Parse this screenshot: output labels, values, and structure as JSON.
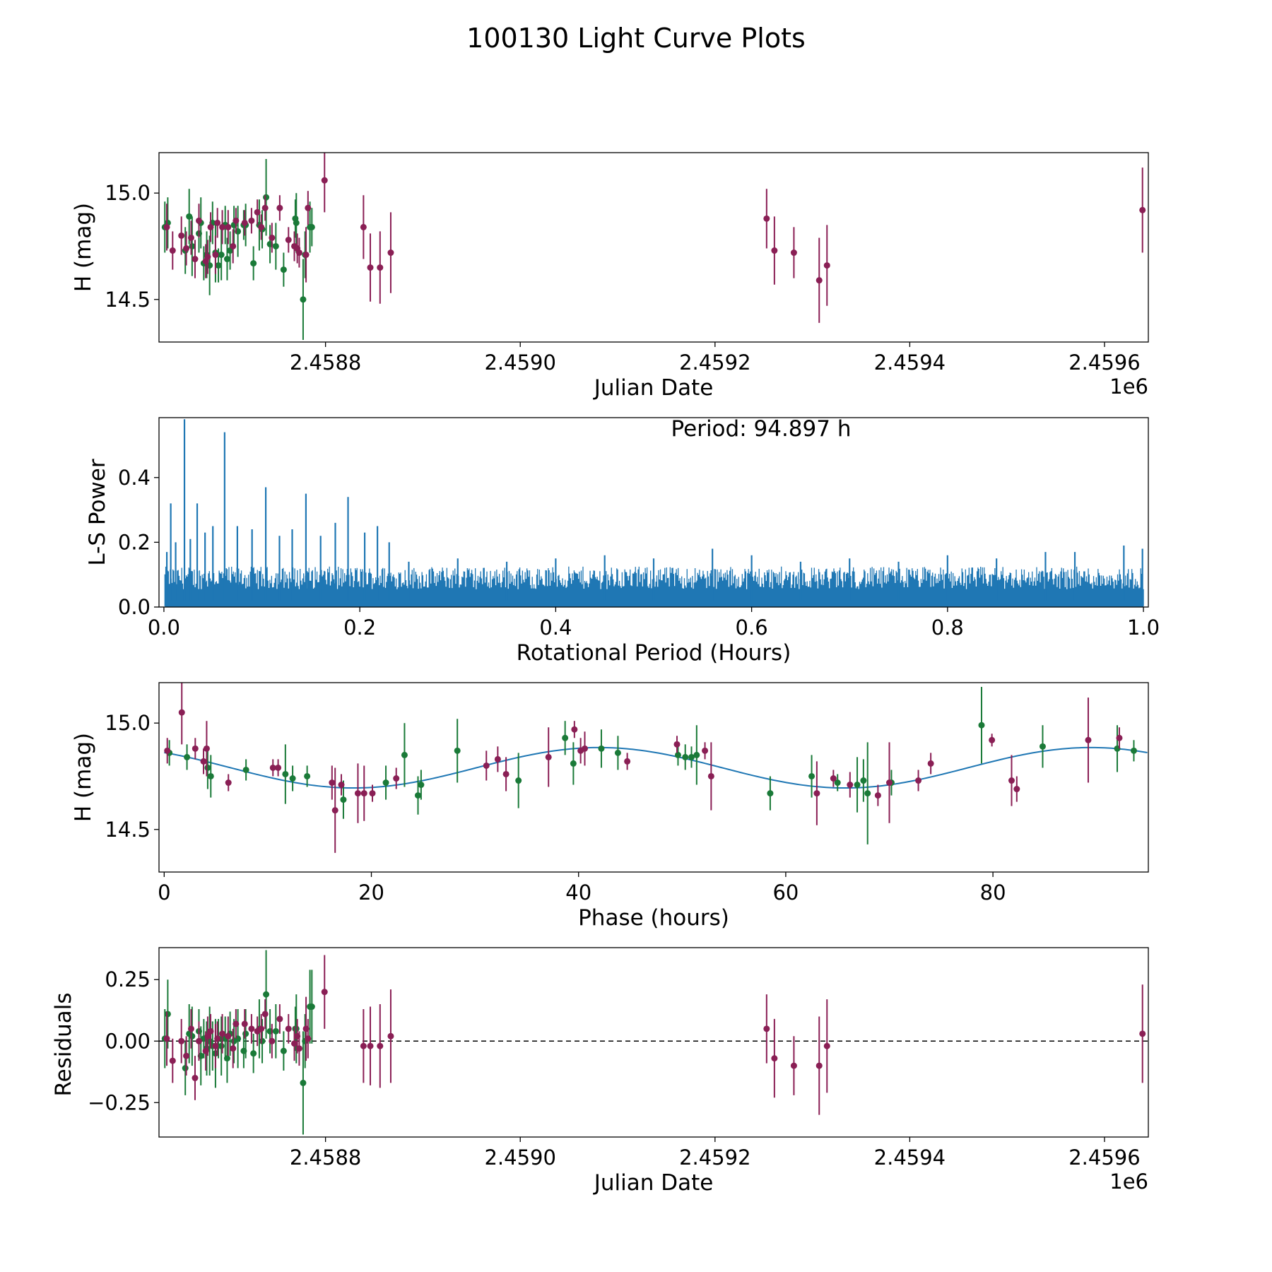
{
  "figure_title": "100130 Light Curve Plots",
  "colors": {
    "green": "#1a7a38",
    "purple": "#8a1f55",
    "blue": "#1f77b4",
    "axis": "#000000"
  },
  "chart_data": [
    {
      "id": "lightcurve",
      "type": "scatter",
      "title": "",
      "xlabel": "Julian Date",
      "ylabel": "H (mag)",
      "x_offset_label": "1e6",
      "xlim": [
        2458629,
        2459645
      ],
      "ylim": [
        14.3,
        15.19
      ],
      "xticks": [
        2458800,
        2459000,
        2459200,
        2459400,
        2459600
      ],
      "xtick_labels": [
        "2.4588",
        "2.4590",
        "2.4592",
        "2.4594",
        "2.4596"
      ],
      "yticks": [
        14.5,
        15.0
      ],
      "ytick_labels": [
        "14.5",
        "15.0"
      ],
      "grid": false,
      "series": [
        {
          "name": "green",
          "color": "#1a7a38",
          "x": [
            2458635,
            2458638,
            2458656,
            2458660,
            2458663,
            2458670,
            2458672,
            2458675,
            2458678,
            2458681,
            2458684,
            2458687,
            2458690,
            2458693,
            2458697,
            2458699,
            2458702,
            2458706,
            2458710,
            2458716,
            2458718,
            2458726,
            2458732,
            2458735,
            2458739,
            2458743,
            2458749,
            2458757,
            2458769,
            2458770,
            2458777,
            2458779,
            2458784,
            2458786
          ],
          "y": [
            14.84,
            14.86,
            14.73,
            14.89,
            14.75,
            14.81,
            14.86,
            14.67,
            14.71,
            14.66,
            14.86,
            14.72,
            14.66,
            14.71,
            14.85,
            14.69,
            14.73,
            14.85,
            14.82,
            14.85,
            14.85,
            14.67,
            14.85,
            14.83,
            14.98,
            14.76,
            14.75,
            14.64,
            14.88,
            14.86,
            14.5,
            14.71,
            14.84,
            14.84
          ],
          "err": [
            0.12,
            0.12,
            0.11,
            0.13,
            0.14,
            0.09,
            0.12,
            0.08,
            0.11,
            0.14,
            0.1,
            0.14,
            0.08,
            0.12,
            0.09,
            0.1,
            0.09,
            0.09,
            0.12,
            0.07,
            0.1,
            0.08,
            0.12,
            0.09,
            0.18,
            0.09,
            0.11,
            0.08,
            0.09,
            0.14,
            0.19,
            0.11,
            0.12,
            0.09
          ]
        },
        {
          "name": "purple",
          "color": "#8a1f55",
          "x": [
            2458637,
            2458643,
            2458652,
            2458657,
            2458662,
            2458666,
            2458670,
            2458677,
            2458679,
            2458682,
            2458687,
            2458689,
            2458694,
            2458700,
            2458705,
            2458708,
            2458717,
            2458724,
            2458730,
            2458734,
            2458738,
            2458745,
            2458753,
            2458762,
            2458768,
            2458771,
            2458773,
            2458780,
            2458782,
            2458799,
            2458839,
            2458846,
            2458856,
            2458867,
            2459253,
            2459261,
            2459281,
            2459307,
            2459315,
            2459639
          ],
          "y": [
            14.84,
            14.73,
            14.8,
            14.74,
            14.79,
            14.69,
            14.87,
            14.68,
            14.7,
            14.84,
            14.71,
            14.86,
            14.84,
            14.84,
            14.75,
            14.87,
            14.86,
            14.87,
            14.91,
            14.84,
            14.93,
            14.79,
            14.93,
            14.78,
            14.75,
            14.74,
            14.72,
            14.71,
            14.93,
            15.06,
            14.84,
            14.65,
            14.65,
            14.72,
            14.88,
            14.73,
            14.72,
            14.59,
            14.66,
            14.92
          ],
          "err": [
            0.11,
            0.09,
            0.09,
            0.08,
            0.08,
            0.09,
            0.08,
            0.08,
            0.08,
            0.07,
            0.09,
            0.07,
            0.08,
            0.08,
            0.08,
            0.06,
            0.06,
            0.06,
            0.06,
            0.06,
            0.06,
            0.07,
            0.06,
            0.06,
            0.07,
            0.07,
            0.07,
            0.13,
            0.08,
            0.15,
            0.15,
            0.16,
            0.17,
            0.19,
            0.14,
            0.16,
            0.12,
            0.2,
            0.19,
            0.2
          ]
        }
      ]
    },
    {
      "id": "periodogram",
      "type": "line",
      "title": "",
      "xlabel": "Rotational Period (Hours)",
      "ylabel": "L-S Power",
      "annotation": "Period: 94.897 h",
      "xlim": [
        -0.005,
        1.005
      ],
      "ylim": [
        0.0,
        0.585
      ],
      "xticks": [
        0.0,
        0.2,
        0.4,
        0.6,
        0.8,
        1.0
      ],
      "xtick_labels": [
        "0.0",
        "0.2",
        "0.4",
        "0.6",
        "0.8",
        "1.0"
      ],
      "yticks": [
        0.0,
        0.2,
        0.4
      ],
      "ytick_labels": [
        "0.0",
        "0.2",
        "0.4"
      ],
      "grid": false,
      "color": "#1f77b4",
      "x_range": [
        0.001,
        1.0
      ],
      "n_points": 1100,
      "baseline_level": 0.1,
      "peaks": [
        {
          "x": 0.003,
          "y": 0.17
        },
        {
          "x": 0.007,
          "y": 0.32
        },
        {
          "x": 0.012,
          "y": 0.2
        },
        {
          "x": 0.021,
          "y": 0.58
        },
        {
          "x": 0.027,
          "y": 0.21
        },
        {
          "x": 0.034,
          "y": 0.32
        },
        {
          "x": 0.042,
          "y": 0.23
        },
        {
          "x": 0.05,
          "y": 0.25
        },
        {
          "x": 0.062,
          "y": 0.54
        },
        {
          "x": 0.075,
          "y": 0.25
        },
        {
          "x": 0.09,
          "y": 0.24
        },
        {
          "x": 0.104,
          "y": 0.37
        },
        {
          "x": 0.118,
          "y": 0.22
        },
        {
          "x": 0.131,
          "y": 0.24
        },
        {
          "x": 0.145,
          "y": 0.35
        },
        {
          "x": 0.16,
          "y": 0.22
        },
        {
          "x": 0.175,
          "y": 0.26
        },
        {
          "x": 0.188,
          "y": 0.34
        },
        {
          "x": 0.205,
          "y": 0.23
        },
        {
          "x": 0.218,
          "y": 0.25
        },
        {
          "x": 0.23,
          "y": 0.2
        },
        {
          "x": 0.25,
          "y": 0.14
        },
        {
          "x": 0.3,
          "y": 0.15
        },
        {
          "x": 0.35,
          "y": 0.14
        },
        {
          "x": 0.4,
          "y": 0.15
        },
        {
          "x": 0.45,
          "y": 0.16
        },
        {
          "x": 0.5,
          "y": 0.15
        },
        {
          "x": 0.56,
          "y": 0.18
        },
        {
          "x": 0.6,
          "y": 0.16
        },
        {
          "x": 0.65,
          "y": 0.14
        },
        {
          "x": 0.7,
          "y": 0.15
        },
        {
          "x": 0.75,
          "y": 0.14
        },
        {
          "x": 0.8,
          "y": 0.16
        },
        {
          "x": 0.85,
          "y": 0.15
        },
        {
          "x": 0.9,
          "y": 0.17
        },
        {
          "x": 0.93,
          "y": 0.17
        },
        {
          "x": 0.98,
          "y": 0.19
        },
        {
          "x": 0.999,
          "y": 0.18
        }
      ]
    },
    {
      "id": "phased",
      "type": "scatter",
      "title": "",
      "xlabel": "Phase (hours)",
      "ylabel": "H (mag)",
      "xlim": [
        -0.5,
        95.0
      ],
      "ylim": [
        14.3,
        15.19
      ],
      "xticks": [
        0,
        20,
        40,
        60,
        80
      ],
      "xtick_labels": [
        "0",
        "20",
        "40",
        "60",
        "80"
      ],
      "yticks": [
        14.5,
        15.0
      ],
      "ytick_labels": [
        "14.5",
        "15.0"
      ],
      "grid": false,
      "fit": {
        "mean": 14.79,
        "amplitude": 0.095,
        "period": 47.45,
        "peak_phase": 42.0,
        "x_range": [
          0,
          94.9
        ],
        "color": "#1f77b4"
      },
      "series": [
        {
          "name": "green",
          "color": "#1a7a38",
          "x": [
            0.5,
            2.2,
            4.2,
            4.5,
            7.9,
            11.7,
            12.4,
            13.8,
            17.3,
            21.4,
            23.2,
            24.5,
            24.8,
            28.3,
            34.2,
            38.7,
            39.5,
            42.2,
            43.8,
            49.6,
            50.3,
            50.9,
            51.4,
            58.5,
            62.5,
            65.0,
            66.9,
            67.5,
            67.9,
            70.2,
            78.9,
            84.8,
            92.0,
            93.6
          ],
          "y": [
            14.86,
            14.84,
            14.79,
            14.75,
            14.78,
            14.76,
            14.74,
            14.75,
            14.64,
            14.72,
            14.85,
            14.66,
            14.71,
            14.87,
            14.73,
            14.93,
            14.81,
            14.88,
            14.86,
            14.85,
            14.84,
            14.84,
            14.85,
            14.67,
            14.75,
            14.72,
            14.71,
            14.73,
            14.67,
            14.72,
            14.99,
            14.89,
            14.88,
            14.87
          ],
          "err": [
            0.06,
            0.06,
            0.1,
            0.1,
            0.05,
            0.14,
            0.06,
            0.05,
            0.09,
            0.08,
            0.15,
            0.09,
            0.07,
            0.15,
            0.13,
            0.08,
            0.1,
            0.09,
            0.08,
            0.05,
            0.06,
            0.05,
            0.14,
            0.08,
            0.1,
            0.04,
            0.13,
            0.1,
            0.24,
            0.06,
            0.18,
            0.1,
            0.11,
            0.05
          ]
        },
        {
          "name": "purple",
          "color": "#8a1f55",
          "x": [
            0.3,
            1.7,
            3.0,
            3.8,
            4.1,
            6.2,
            10.5,
            11.0,
            16.2,
            16.5,
            17.1,
            18.7,
            19.3,
            20.1,
            22.4,
            31.1,
            32.2,
            33.0,
            37.1,
            39.6,
            40.2,
            40.6,
            44.7,
            49.5,
            52.2,
            52.8,
            63.0,
            64.6,
            66.2,
            68.9,
            70.0,
            72.8,
            74.0,
            79.9,
            81.8,
            82.3,
            89.2,
            92.2
          ],
          "y": [
            14.87,
            15.05,
            14.88,
            14.82,
            14.88,
            14.72,
            14.79,
            14.79,
            14.72,
            14.59,
            14.71,
            14.67,
            14.67,
            14.67,
            14.74,
            14.8,
            14.83,
            14.76,
            14.84,
            14.97,
            14.87,
            14.88,
            14.82,
            14.9,
            14.87,
            14.75,
            14.67,
            14.74,
            14.71,
            14.66,
            14.72,
            14.73,
            14.81,
            14.92,
            14.73,
            14.69,
            14.92,
            14.93
          ],
          "err": [
            0.06,
            0.15,
            0.05,
            0.06,
            0.13,
            0.04,
            0.04,
            0.04,
            0.08,
            0.2,
            0.05,
            0.14,
            0.13,
            0.04,
            0.05,
            0.07,
            0.06,
            0.08,
            0.14,
            0.04,
            0.06,
            0.08,
            0.04,
            0.04,
            0.04,
            0.16,
            0.15,
            0.04,
            0.06,
            0.05,
            0.19,
            0.05,
            0.05,
            0.03,
            0.12,
            0.06,
            0.2,
            0.05
          ]
        }
      ]
    },
    {
      "id": "residuals",
      "type": "scatter",
      "title": "",
      "xlabel": "Julian Date",
      "ylabel": "Residuals",
      "x_offset_label": "1e6",
      "xlim": [
        2458629,
        2459645
      ],
      "ylim": [
        -0.39,
        0.38
      ],
      "xticks": [
        2458800,
        2459000,
        2459200,
        2459400,
        2459600
      ],
      "xtick_labels": [
        "2.4588",
        "2.4590",
        "2.4592",
        "2.4594",
        "2.4596"
      ],
      "yticks": [
        -0.25,
        0.0,
        0.25
      ],
      "ytick_labels": [
        "−0.25",
        "0.00",
        "0.25"
      ],
      "zero_line": 0.0,
      "grid": false,
      "series": [
        {
          "name": "green",
          "color": "#1a7a38",
          "x": [
            2458635,
            2458638,
            2458656,
            2458660,
            2458663,
            2458670,
            2458672,
            2458675,
            2458678,
            2458681,
            2458684,
            2458687,
            2458690,
            2458693,
            2458697,
            2458699,
            2458702,
            2458706,
            2458710,
            2458716,
            2458718,
            2458726,
            2458732,
            2458735,
            2458739,
            2458743,
            2458749,
            2458757,
            2458769,
            2458770,
            2458777,
            2458779,
            2458784,
            2458786
          ],
          "y": [
            0.01,
            0.11,
            -0.11,
            0.03,
            0.02,
            0.04,
            -0.06,
            0.01,
            -0.03,
            0.0,
            -0.02,
            -0.05,
            0.01,
            -0.02,
            0.01,
            -0.07,
            0.03,
            0.0,
            0.01,
            -0.04,
            0.03,
            -0.05,
            0.05,
            0.0,
            0.19,
            0.04,
            0.04,
            -0.04,
            0.05,
            0.05,
            -0.17,
            0.0,
            0.14,
            0.14
          ],
          "err": [
            0.12,
            0.14,
            0.11,
            0.12,
            0.12,
            0.09,
            0.12,
            0.08,
            0.11,
            0.14,
            0.1,
            0.14,
            0.08,
            0.12,
            0.09,
            0.1,
            0.09,
            0.09,
            0.12,
            0.07,
            0.1,
            0.08,
            0.12,
            0.09,
            0.18,
            0.09,
            0.11,
            0.08,
            0.09,
            0.14,
            0.21,
            0.11,
            0.15,
            0.15
          ]
        },
        {
          "name": "purple",
          "color": "#8a1f55",
          "x": [
            2458637,
            2458643,
            2458652,
            2458657,
            2458662,
            2458666,
            2458670,
            2458677,
            2458679,
            2458682,
            2458687,
            2458689,
            2458694,
            2458700,
            2458705,
            2458708,
            2458717,
            2458724,
            2458730,
            2458734,
            2458738,
            2458745,
            2458753,
            2458762,
            2458768,
            2458771,
            2458773,
            2458780,
            2458782,
            2458799,
            2458839,
            2458846,
            2458856,
            2458867,
            2459253,
            2459261,
            2459281,
            2459307,
            2459315,
            2459639
          ],
          "y": [
            0.01,
            -0.08,
            0.0,
            -0.06,
            0.05,
            -0.15,
            0.0,
            -0.04,
            0.02,
            0.04,
            -0.02,
            0.01,
            0.03,
            0.02,
            -0.03,
            0.07,
            0.07,
            0.05,
            0.04,
            0.05,
            0.11,
            0.0,
            0.09,
            0.05,
            -0.01,
            0.02,
            -0.03,
            0.05,
            0.01,
            0.2,
            -0.02,
            -0.02,
            -0.02,
            0.02,
            0.05,
            -0.07,
            -0.1,
            -0.1,
            -0.02,
            0.03
          ],
          "err": [
            0.11,
            0.09,
            0.09,
            0.08,
            0.08,
            0.09,
            0.08,
            0.08,
            0.08,
            0.07,
            0.09,
            0.07,
            0.08,
            0.08,
            0.08,
            0.06,
            0.06,
            0.06,
            0.06,
            0.06,
            0.06,
            0.07,
            0.06,
            0.06,
            0.07,
            0.07,
            0.07,
            0.13,
            0.08,
            0.15,
            0.15,
            0.16,
            0.17,
            0.19,
            0.14,
            0.16,
            0.12,
            0.2,
            0.19,
            0.2
          ]
        }
      ]
    }
  ]
}
